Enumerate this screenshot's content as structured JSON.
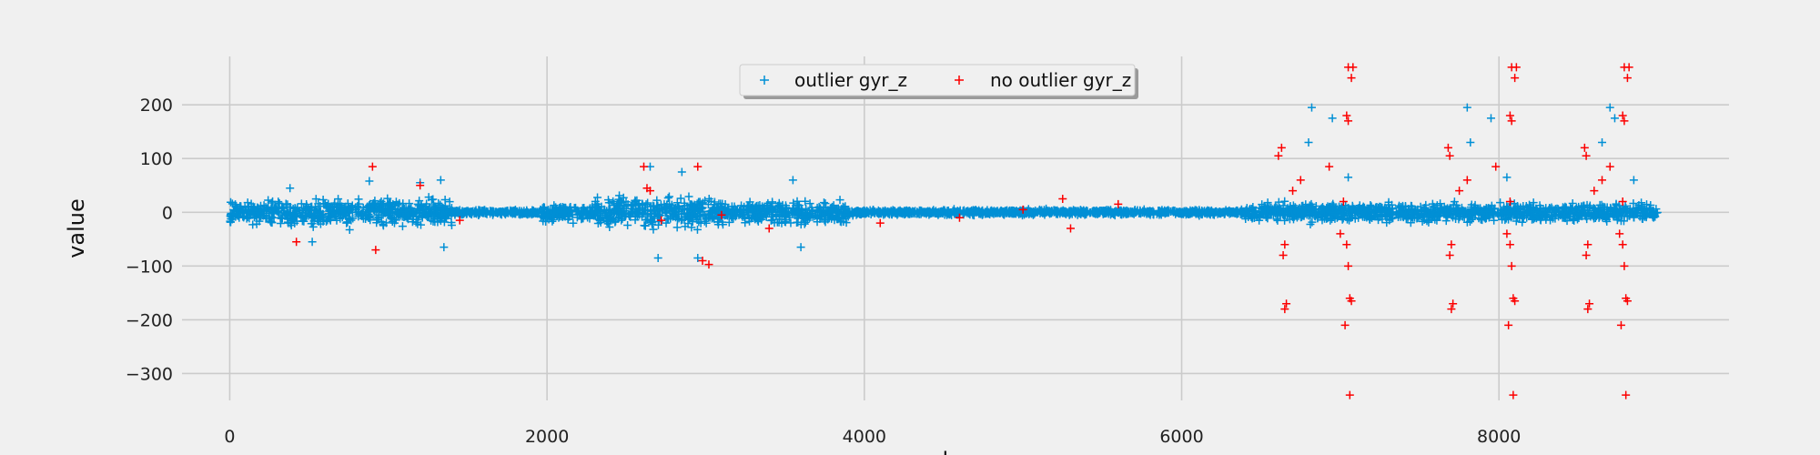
{
  "chart_data": {
    "type": "scatter",
    "title": "",
    "xlabel": "samples",
    "ylabel": "value",
    "xlim": [
      -450,
      9450
    ],
    "ylim": [
      -350,
      290
    ],
    "xticks": [
      0,
      2000,
      4000,
      6000,
      8000
    ],
    "yticks": [
      200,
      100,
      0,
      -100,
      -200,
      -300
    ],
    "xtick_labels": [
      "0",
      "2000",
      "4000",
      "6000",
      "8000"
    ],
    "ytick_labels": [
      "200",
      "100",
      "0",
      "−100",
      "−200",
      "−300"
    ],
    "grid": true,
    "legend": {
      "placement": "top-center",
      "columns": 2
    },
    "marker": "+",
    "series": [
      {
        "name": "outlier gyr_z",
        "color": "#008fd5",
        "segments": [
          {
            "x_range": [
              0,
              1400
            ],
            "spread": 30
          },
          {
            "x_range": [
              1400,
              1950
            ],
            "spread": 6
          },
          {
            "x_range": [
              1950,
              2300
            ],
            "spread": 18
          },
          {
            "x_range": [
              2300,
              3100
            ],
            "spread": 35
          },
          {
            "x_range": [
              3100,
              3900
            ],
            "spread": 25
          },
          {
            "x_range": [
              3900,
              6400
            ],
            "spread": 6
          },
          {
            "x_range": [
              6400,
              9000
            ],
            "spread": 20
          }
        ],
        "scattered_points": [
          [
            380,
            45
          ],
          [
            520,
            -55
          ],
          [
            880,
            58
          ],
          [
            1200,
            55
          ],
          [
            1330,
            60
          ],
          [
            1350,
            -65
          ],
          [
            2650,
            85
          ],
          [
            2700,
            -85
          ],
          [
            2850,
            75
          ],
          [
            2950,
            -85
          ],
          [
            3550,
            60
          ],
          [
            3600,
            -65
          ],
          [
            6820,
            195
          ],
          [
            6800,
            130
          ],
          [
            6950,
            175
          ],
          [
            7050,
            65
          ],
          [
            7800,
            195
          ],
          [
            7950,
            175
          ],
          [
            7820,
            130
          ],
          [
            8050,
            65
          ],
          [
            8700,
            195
          ],
          [
            8730,
            175
          ],
          [
            8650,
            130
          ],
          [
            8850,
            60
          ]
        ]
      },
      {
        "name": "no outlier gyr_z",
        "color": "#fc0000",
        "points": [
          [
            900,
            85
          ],
          [
            1200,
            50
          ],
          [
            420,
            -55
          ],
          [
            920,
            -70
          ],
          [
            1450,
            -15
          ],
          [
            2610,
            85
          ],
          [
            2630,
            45
          ],
          [
            2950,
            85
          ],
          [
            2980,
            -90
          ],
          [
            3020,
            -97
          ],
          [
            2650,
            40
          ],
          [
            2720,
            -15
          ],
          [
            3100,
            -5
          ],
          [
            3400,
            -30
          ],
          [
            4100,
            -20
          ],
          [
            4600,
            -10
          ],
          [
            5000,
            5
          ],
          [
            5250,
            25
          ],
          [
            5300,
            -30
          ],
          [
            5600,
            15
          ],
          [
            6630,
            120
          ],
          [
            6610,
            105
          ],
          [
            6650,
            -60
          ],
          [
            6640,
            -80
          ],
          [
            6660,
            -170
          ],
          [
            6650,
            -180
          ],
          [
            6700,
            40
          ],
          [
            6750,
            60
          ],
          [
            6930,
            85
          ],
          [
            7000,
            -40
          ],
          [
            7020,
            20
          ],
          [
            7050,
            270
          ],
          [
            7080,
            270
          ],
          [
            7070,
            250
          ],
          [
            7040,
            180
          ],
          [
            7050,
            170
          ],
          [
            7040,
            -60
          ],
          [
            7050,
            -100
          ],
          [
            7060,
            -160
          ],
          [
            7070,
            -165
          ],
          [
            7030,
            -210
          ],
          [
            7060,
            -340
          ],
          [
            7680,
            120
          ],
          [
            7690,
            105
          ],
          [
            7700,
            -60
          ],
          [
            7690,
            -80
          ],
          [
            7710,
            -170
          ],
          [
            7700,
            -180
          ],
          [
            7750,
            40
          ],
          [
            7800,
            60
          ],
          [
            7980,
            85
          ],
          [
            8050,
            -40
          ],
          [
            8070,
            20
          ],
          [
            8080,
            270
          ],
          [
            8110,
            270
          ],
          [
            8100,
            250
          ],
          [
            8070,
            180
          ],
          [
            8080,
            170
          ],
          [
            8070,
            -60
          ],
          [
            8080,
            -100
          ],
          [
            8090,
            -160
          ],
          [
            8100,
            -165
          ],
          [
            8060,
            -210
          ],
          [
            8090,
            -340
          ],
          [
            8540,
            120
          ],
          [
            8550,
            105
          ],
          [
            8560,
            -60
          ],
          [
            8550,
            -80
          ],
          [
            8570,
            -170
          ],
          [
            8560,
            -180
          ],
          [
            8600,
            40
          ],
          [
            8650,
            60
          ],
          [
            8700,
            85
          ],
          [
            8760,
            -40
          ],
          [
            8780,
            20
          ],
          [
            8790,
            270
          ],
          [
            8820,
            270
          ],
          [
            8810,
            250
          ],
          [
            8780,
            180
          ],
          [
            8790,
            170
          ],
          [
            8780,
            -60
          ],
          [
            8790,
            -100
          ],
          [
            8800,
            -160
          ],
          [
            8810,
            -165
          ],
          [
            8770,
            -210
          ],
          [
            8800,
            -340
          ]
        ]
      }
    ]
  }
}
